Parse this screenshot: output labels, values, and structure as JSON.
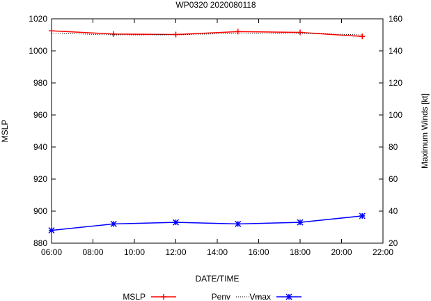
{
  "chart_data": {
    "type": "line",
    "title": "WP0320 2020080118",
    "xlabel": "DATE/TIME",
    "ylabel": "MSLP",
    "y2label": "Maximum Winds [kt]",
    "x_ticks": [
      "06:00",
      "08:00",
      "10:00",
      "12:00",
      "14:00",
      "16:00",
      "18:00",
      "20:00",
      "22:00"
    ],
    "x_tick_hours": [
      6,
      8,
      10,
      12,
      14,
      16,
      18,
      20,
      22
    ],
    "xlim_hours": [
      6,
      22
    ],
    "y_ticks": [
      880,
      900,
      920,
      940,
      960,
      980,
      1000,
      1020
    ],
    "ylim": [
      880,
      1020
    ],
    "y2_ticks": [
      20,
      40,
      60,
      80,
      100,
      120,
      140,
      160
    ],
    "y2lim": [
      20,
      160
    ],
    "legend_position": "bottom",
    "x_hours": [
      6,
      9,
      12,
      15,
      18,
      21
    ],
    "series": [
      {
        "name": "MSLP",
        "axis": "y1",
        "style": "solid",
        "marker": "plus",
        "color": "#ff0000",
        "values": [
          1012.5,
          1010.5,
          1010.2,
          1012.0,
          1011.5,
          1009.0
        ]
      },
      {
        "name": "Penv",
        "axis": "y1",
        "style": "dotted",
        "marker": "none",
        "color": "#000000",
        "values": [
          1011.0,
          1010.0,
          1010.0,
          1011.0,
          1011.0,
          1010.0
        ]
      },
      {
        "name": "Vmax",
        "axis": "y2",
        "style": "solid",
        "marker": "star",
        "color": "#0000ff",
        "values": [
          28,
          32,
          33,
          32,
          33,
          37
        ]
      }
    ]
  }
}
